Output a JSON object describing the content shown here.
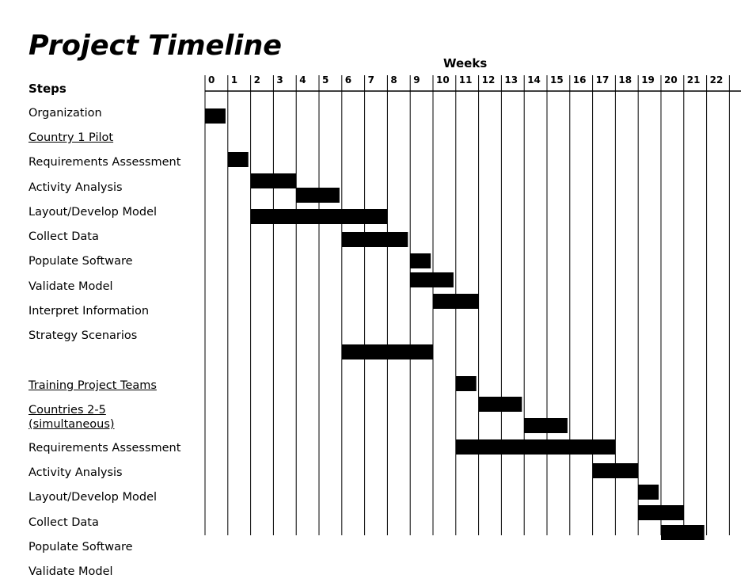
{
  "chart_data": {
    "type": "gantt",
    "title": "Project Timeline",
    "xlabel": "Weeks",
    "ylabel": "Steps",
    "xlim": [
      0,
      23
    ],
    "grid": true,
    "bar_color": "#000000",
    "x_ticks": [
      "0",
      "1",
      "2",
      "3",
      "4",
      "5",
      "6",
      "7",
      "8",
      "9",
      "10",
      "11",
      "12",
      "13",
      "14",
      "15",
      "16",
      "17",
      "18",
      "19",
      "20",
      "21",
      "22"
    ],
    "steps": [
      {
        "label": "Organization",
        "underline": false
      },
      {
        "label": "Country 1 Pilot",
        "underline": true
      },
      {
        "label": "Requirements Assessment",
        "underline": false
      },
      {
        "label": "Activity Analysis",
        "underline": false
      },
      {
        "label": "Layout/Develop Model",
        "underline": false
      },
      {
        "label": "Collect Data",
        "underline": false
      },
      {
        "label": "Populate Software",
        "underline": false
      },
      {
        "label": "Validate Model",
        "underline": false
      },
      {
        "label": "Interpret Information",
        "underline": false
      },
      {
        "label": "Strategy Scenarios",
        "underline": false
      },
      {
        "label": "Training Project Teams",
        "underline": true
      },
      {
        "label": "Countries 2-5 (simultaneous)",
        "underline": true
      },
      {
        "label": "Requirements Assessment",
        "underline": false
      },
      {
        "label": "Activity Analysis",
        "underline": false
      },
      {
        "label": "Layout/Develop Model",
        "underline": false
      },
      {
        "label": "Collect Data",
        "underline": false
      },
      {
        "label": "Populate Software",
        "underline": false
      },
      {
        "label": "Validate Model",
        "underline": false
      }
    ],
    "tasks": [
      {
        "start": 0,
        "end": 0.9
      },
      {
        "start": 1,
        "end": 1.9
      },
      {
        "start": 2,
        "end": 4
      },
      {
        "start": 4,
        "end": 5.9
      },
      {
        "start": 2,
        "end": 8
      },
      {
        "start": 6,
        "end": 8.9
      },
      {
        "start": 9,
        "end": 9.9
      },
      {
        "start": 9,
        "end": 10.9
      },
      {
        "start": 10,
        "end": 12
      },
      {
        "start": 6,
        "end": 10
      },
      {
        "start": 11,
        "end": 11.9
      },
      {
        "start": 12,
        "end": 13.9
      },
      {
        "start": 14,
        "end": 15.9
      },
      {
        "start": 11,
        "end": 18
      },
      {
        "start": 17,
        "end": 19
      },
      {
        "start": 19,
        "end": 19.9
      },
      {
        "start": 19,
        "end": 21
      },
      {
        "start": 20,
        "end": 21.9
      }
    ]
  }
}
